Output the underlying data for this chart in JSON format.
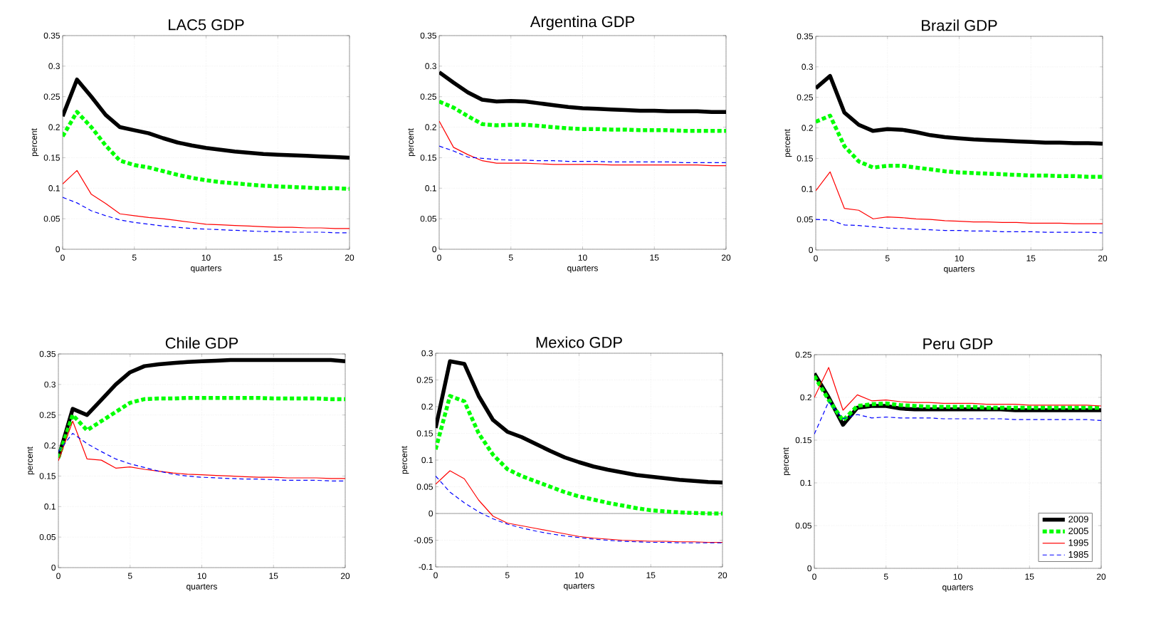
{
  "chart_data": [
    {
      "type": "line",
      "title": "LAC5 GDP",
      "xlabel": "quarters",
      "ylabel": "percent",
      "x": [
        0,
        1,
        2,
        3,
        4,
        5,
        6,
        7,
        8,
        9,
        10,
        11,
        12,
        13,
        14,
        15,
        16,
        17,
        18,
        19,
        20
      ],
      "xlim": [
        0,
        20
      ],
      "xticks": [
        0,
        5,
        10,
        15,
        20
      ],
      "ylim": [
        0,
        0.35
      ],
      "yticks": [
        0,
        0.05,
        0.1,
        0.15,
        0.2,
        0.25,
        0.3,
        0.35
      ],
      "grid": true,
      "marker": "none",
      "series": [
        {
          "color": "#000000",
          "line_style": "solid",
          "values": [
            0.218,
            0.278,
            0.25,
            0.22,
            0.2,
            0.195,
            0.19,
            0.182,
            0.175,
            0.17,
            0.166,
            0.163,
            0.16,
            0.158,
            0.156,
            0.155,
            0.154,
            0.153,
            0.152,
            0.151,
            0.15
          ]
        },
        {
          "color": "#00ff00",
          "line_style": "dotted",
          "values": [
            0.185,
            0.225,
            0.2,
            0.17,
            0.145,
            0.138,
            0.134,
            0.128,
            0.122,
            0.117,
            0.113,
            0.11,
            0.108,
            0.106,
            0.104,
            0.103,
            0.102,
            0.101,
            0.1,
            0.1,
            0.099
          ]
        },
        {
          "color": "#ff0000",
          "line_style": "solid",
          "values": [
            0.107,
            0.129,
            0.09,
            0.075,
            0.058,
            0.055,
            0.052,
            0.05,
            0.047,
            0.044,
            0.041,
            0.04,
            0.039,
            0.038,
            0.037,
            0.036,
            0.036,
            0.035,
            0.035,
            0.034,
            0.034
          ]
        },
        {
          "color": "#0000ff",
          "line_style": "dashed",
          "values": [
            0.085,
            0.076,
            0.063,
            0.055,
            0.048,
            0.044,
            0.041,
            0.038,
            0.036,
            0.034,
            0.033,
            0.032,
            0.031,
            0.03,
            0.029,
            0.029,
            0.028,
            0.028,
            0.028,
            0.027,
            0.027
          ]
        }
      ]
    },
    {
      "type": "line",
      "title": "Argentina GDP",
      "xlabel": "quarters",
      "ylabel": "percent",
      "x": [
        0,
        1,
        2,
        3,
        4,
        5,
        6,
        7,
        8,
        9,
        10,
        11,
        12,
        13,
        14,
        15,
        16,
        17,
        18,
        19,
        20
      ],
      "xlim": [
        0,
        20
      ],
      "xticks": [
        0,
        5,
        10,
        15,
        20
      ],
      "ylim": [
        0,
        0.35
      ],
      "yticks": [
        0,
        0.05,
        0.1,
        0.15,
        0.2,
        0.25,
        0.3,
        0.35
      ],
      "grid": true,
      "marker": "none",
      "series": [
        {
          "color": "#000000",
          "line_style": "solid",
          "values": [
            0.29,
            0.273,
            0.257,
            0.245,
            0.242,
            0.243,
            0.242,
            0.239,
            0.236,
            0.233,
            0.231,
            0.23,
            0.229,
            0.228,
            0.227,
            0.227,
            0.226,
            0.226,
            0.226,
            0.225,
            0.225
          ]
        },
        {
          "color": "#00ff00",
          "line_style": "dotted",
          "values": [
            0.242,
            0.232,
            0.218,
            0.205,
            0.203,
            0.204,
            0.204,
            0.202,
            0.2,
            0.198,
            0.197,
            0.197,
            0.196,
            0.196,
            0.195,
            0.195,
            0.195,
            0.194,
            0.194,
            0.194,
            0.194
          ]
        },
        {
          "color": "#ff0000",
          "line_style": "solid",
          "values": [
            0.21,
            0.167,
            0.155,
            0.145,
            0.141,
            0.141,
            0.141,
            0.14,
            0.139,
            0.139,
            0.139,
            0.139,
            0.138,
            0.138,
            0.138,
            0.138,
            0.138,
            0.138,
            0.138,
            0.137,
            0.137
          ]
        },
        {
          "color": "#0000ff",
          "line_style": "dashed",
          "values": [
            0.169,
            0.161,
            0.151,
            0.149,
            0.147,
            0.146,
            0.146,
            0.145,
            0.145,
            0.144,
            0.144,
            0.144,
            0.143,
            0.143,
            0.143,
            0.143,
            0.143,
            0.142,
            0.142,
            0.142,
            0.142
          ]
        }
      ]
    },
    {
      "type": "line",
      "title": "Brazil GDP",
      "xlabel": "quarters",
      "ylabel": "percent",
      "x": [
        0,
        1,
        2,
        3,
        4,
        5,
        6,
        7,
        8,
        9,
        10,
        11,
        12,
        13,
        14,
        15,
        16,
        17,
        18,
        19,
        20
      ],
      "xlim": [
        0,
        20
      ],
      "xticks": [
        0,
        5,
        10,
        15,
        20
      ],
      "ylim": [
        0,
        0.35
      ],
      "yticks": [
        0,
        0.05,
        0.1,
        0.15,
        0.2,
        0.25,
        0.3,
        0.35
      ],
      "grid": true,
      "marker": "none",
      "series": [
        {
          "color": "#000000",
          "line_style": "solid",
          "values": [
            0.265,
            0.285,
            0.225,
            0.205,
            0.195,
            0.198,
            0.197,
            0.193,
            0.188,
            0.185,
            0.183,
            0.181,
            0.18,
            0.179,
            0.178,
            0.177,
            0.176,
            0.176,
            0.175,
            0.175,
            0.174
          ]
        },
        {
          "color": "#00ff00",
          "line_style": "dotted",
          "values": [
            0.21,
            0.22,
            0.17,
            0.145,
            0.135,
            0.138,
            0.138,
            0.135,
            0.132,
            0.129,
            0.127,
            0.126,
            0.125,
            0.124,
            0.123,
            0.122,
            0.122,
            0.121,
            0.121,
            0.12,
            0.12
          ]
        },
        {
          "color": "#ff0000",
          "line_style": "solid",
          "values": [
            0.097,
            0.128,
            0.068,
            0.065,
            0.051,
            0.054,
            0.053,
            0.051,
            0.05,
            0.048,
            0.047,
            0.046,
            0.046,
            0.045,
            0.045,
            0.044,
            0.044,
            0.044,
            0.043,
            0.043,
            0.043
          ]
        },
        {
          "color": "#0000ff",
          "line_style": "dashed",
          "values": [
            0.05,
            0.049,
            0.041,
            0.04,
            0.038,
            0.036,
            0.035,
            0.034,
            0.033,
            0.032,
            0.032,
            0.031,
            0.031,
            0.03,
            0.03,
            0.03,
            0.029,
            0.029,
            0.029,
            0.029,
            0.028
          ]
        }
      ]
    },
    {
      "type": "line",
      "title": "Chile GDP",
      "xlabel": "quarters",
      "ylabel": "percent",
      "x": [
        0,
        1,
        2,
        3,
        4,
        5,
        6,
        7,
        8,
        9,
        10,
        11,
        12,
        13,
        14,
        15,
        16,
        17,
        18,
        19,
        20
      ],
      "xlim": [
        0,
        20
      ],
      "xticks": [
        0,
        5,
        10,
        15,
        20
      ],
      "ylim": [
        0,
        0.35
      ],
      "yticks": [
        0,
        0.05,
        0.1,
        0.15,
        0.2,
        0.25,
        0.3,
        0.35
      ],
      "grid": true,
      "marker": "none",
      "series": [
        {
          "color": "#000000",
          "line_style": "solid",
          "values": [
            0.18,
            0.26,
            0.25,
            0.275,
            0.3,
            0.32,
            0.33,
            0.333,
            0.335,
            0.337,
            0.338,
            0.339,
            0.34,
            0.34,
            0.34,
            0.34,
            0.34,
            0.34,
            0.34,
            0.34,
            0.338
          ]
        },
        {
          "color": "#00ff00",
          "line_style": "dotted",
          "values": [
            0.18,
            0.25,
            0.225,
            0.24,
            0.255,
            0.27,
            0.276,
            0.277,
            0.277,
            0.278,
            0.278,
            0.278,
            0.278,
            0.278,
            0.278,
            0.277,
            0.277,
            0.277,
            0.277,
            0.276,
            0.276
          ]
        },
        {
          "color": "#ff0000",
          "line_style": "solid",
          "values": [
            0.175,
            0.24,
            0.178,
            0.176,
            0.163,
            0.165,
            0.161,
            0.158,
            0.155,
            0.153,
            0.152,
            0.151,
            0.15,
            0.149,
            0.148,
            0.148,
            0.147,
            0.147,
            0.147,
            0.146,
            0.146
          ]
        },
        {
          "color": "#0000ff",
          "line_style": "dashed",
          "values": [
            0.19,
            0.22,
            0.203,
            0.19,
            0.178,
            0.17,
            0.164,
            0.158,
            0.153,
            0.15,
            0.148,
            0.147,
            0.146,
            0.145,
            0.145,
            0.144,
            0.143,
            0.143,
            0.143,
            0.142,
            0.142
          ]
        }
      ]
    },
    {
      "type": "line",
      "title": "Mexico GDP",
      "xlabel": "quarters",
      "ylabel": "percent",
      "x": [
        0,
        1,
        2,
        3,
        4,
        5,
        6,
        7,
        8,
        9,
        10,
        11,
        12,
        13,
        14,
        15,
        16,
        17,
        18,
        19,
        20
      ],
      "xlim": [
        0,
        20
      ],
      "xticks": [
        0,
        5,
        10,
        15,
        20
      ],
      "ylim": [
        -0.1,
        0.3
      ],
      "yticks": [
        -0.1,
        -0.05,
        0,
        0.05,
        0.1,
        0.15,
        0.2,
        0.25,
        0.3
      ],
      "grid": true,
      "marker": "none",
      "ref_lines": [
        {
          "axis": "y",
          "value": 0,
          "color": "#808080"
        }
      ],
      "series": [
        {
          "color": "#000000",
          "line_style": "solid",
          "values": [
            0.16,
            0.285,
            0.28,
            0.22,
            0.175,
            0.153,
            0.143,
            0.13,
            0.117,
            0.105,
            0.096,
            0.088,
            0.082,
            0.077,
            0.072,
            0.069,
            0.066,
            0.063,
            0.061,
            0.059,
            0.058
          ]
        },
        {
          "color": "#00ff00",
          "line_style": "dotted",
          "values": [
            0.12,
            0.22,
            0.21,
            0.15,
            0.11,
            0.083,
            0.07,
            0.06,
            0.05,
            0.04,
            0.032,
            0.026,
            0.02,
            0.015,
            0.01,
            0.006,
            0.004,
            0.002,
            0.001,
            0.0,
            0.0
          ]
        },
        {
          "color": "#ff0000",
          "line_style": "solid",
          "values": [
            0.055,
            0.08,
            0.065,
            0.025,
            -0.005,
            -0.018,
            -0.023,
            -0.028,
            -0.033,
            -0.038,
            -0.043,
            -0.046,
            -0.048,
            -0.05,
            -0.051,
            -0.052,
            -0.052,
            -0.053,
            -0.053,
            -0.054,
            -0.054
          ]
        },
        {
          "color": "#0000ff",
          "line_style": "dashed",
          "values": [
            0.07,
            0.04,
            0.02,
            0.003,
            -0.01,
            -0.02,
            -0.027,
            -0.033,
            -0.038,
            -0.042,
            -0.045,
            -0.048,
            -0.05,
            -0.052,
            -0.053,
            -0.054,
            -0.054,
            -0.055,
            -0.055,
            -0.055,
            -0.055
          ]
        }
      ]
    },
    {
      "type": "line",
      "title": "Peru GDP",
      "xlabel": "quarters",
      "ylabel": "percent",
      "x": [
        0,
        1,
        2,
        3,
        4,
        5,
        6,
        7,
        8,
        9,
        10,
        11,
        12,
        13,
        14,
        15,
        16,
        17,
        18,
        19,
        20
      ],
      "xlim": [
        0,
        20
      ],
      "xticks": [
        0,
        5,
        10,
        15,
        20
      ],
      "ylim": [
        0,
        0.25
      ],
      "yticks": [
        0,
        0.05,
        0.1,
        0.15,
        0.2,
        0.25
      ],
      "grid": true,
      "marker": "none",
      "legend": "bottom right",
      "series": [
        {
          "name": "2009",
          "color": "#000000",
          "line_style": "solid",
          "values": [
            0.228,
            0.2,
            0.168,
            0.188,
            0.19,
            0.19,
            0.187,
            0.186,
            0.186,
            0.186,
            0.186,
            0.186,
            0.186,
            0.186,
            0.185,
            0.185,
            0.185,
            0.185,
            0.185,
            0.185,
            0.185
          ]
        },
        {
          "name": "2005",
          "color": "#00ff00",
          "line_style": "dotted",
          "values": [
            0.225,
            0.197,
            0.173,
            0.19,
            0.192,
            0.193,
            0.191,
            0.19,
            0.189,
            0.189,
            0.189,
            0.189,
            0.188,
            0.188,
            0.188,
            0.188,
            0.188,
            0.188,
            0.188,
            0.188,
            0.188
          ]
        },
        {
          "name": "1995",
          "color": "#ff0000",
          "line_style": "solid",
          "values": [
            0.2,
            0.235,
            0.185,
            0.203,
            0.196,
            0.197,
            0.195,
            0.194,
            0.194,
            0.193,
            0.193,
            0.193,
            0.192,
            0.192,
            0.192,
            0.191,
            0.191,
            0.191,
            0.191,
            0.191,
            0.19
          ]
        },
        {
          "name": "1985",
          "color": "#0000ff",
          "line_style": "dashed",
          "values": [
            0.157,
            0.195,
            0.175,
            0.18,
            0.176,
            0.177,
            0.176,
            0.176,
            0.176,
            0.175,
            0.175,
            0.175,
            0.175,
            0.175,
            0.174,
            0.174,
            0.174,
            0.174,
            0.174,
            0.174,
            0.173
          ]
        }
      ]
    }
  ]
}
